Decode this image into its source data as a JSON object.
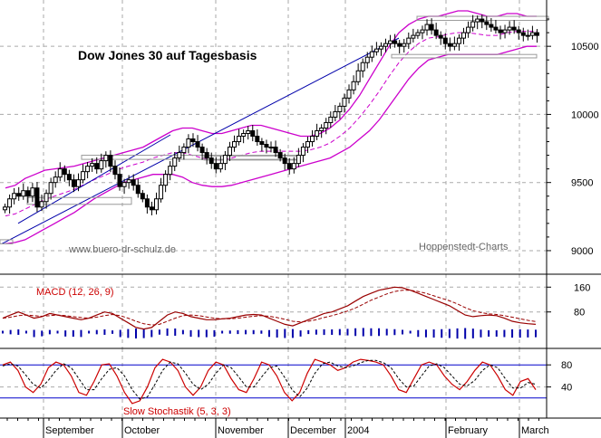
{
  "chart_data": [
    {
      "type": "candlestick",
      "title": "Dow Jones 30 auf Tagesbasis",
      "watermark_left": "www.buero-dr-schulz.de",
      "watermark_right": "Hoppenstedt-Charts",
      "y_ticks": [
        9000,
        9500,
        10000,
        10500
      ],
      "y_tick_labels": [
        "9000",
        "9500",
        "10000",
        "10500"
      ],
      "ylim": [
        8920,
        10800
      ],
      "grid": true,
      "x_labels": [
        "September",
        "October",
        "November",
        "December",
        "2004",
        "February",
        "March"
      ],
      "close": [
        9320,
        9380,
        9420,
        9400,
        9440,
        9400,
        9460,
        9320,
        9360,
        9420,
        9500,
        9540,
        9600,
        9560,
        9520,
        9470,
        9520,
        9580,
        9620,
        9640,
        9600,
        9660,
        9700,
        9620,
        9560,
        9470,
        9500,
        9520,
        9480,
        9420,
        9380,
        9320,
        9300,
        9380,
        9480,
        9560,
        9620,
        9680,
        9720,
        9760,
        9820,
        9800,
        9760,
        9720,
        9680,
        9640,
        9600,
        9640,
        9700,
        9760,
        9800,
        9840,
        9860,
        9880,
        9840,
        9800,
        9780,
        9760,
        9760,
        9720,
        9680,
        9640,
        9600,
        9640,
        9700,
        9760,
        9800,
        9840,
        9880,
        9900,
        9940,
        9980,
        10020,
        10060,
        10120,
        10180,
        10240,
        10320,
        10380,
        10420,
        10460,
        10480,
        10500,
        10520,
        10540,
        10520,
        10500,
        10520,
        10560,
        10580,
        10600,
        10620,
        10660,
        10620,
        10580,
        10560,
        10520,
        10500,
        10520,
        10560,
        10600,
        10640,
        10680,
        10700,
        10680,
        10660,
        10640,
        10620,
        10600,
        10620,
        10640,
        10620,
        10600,
        10580,
        10580,
        10600,
        10580
      ],
      "levels": [
        {
          "type": "upper_band",
          "values": [
            9460,
            9480,
            9530,
            9560,
            9590,
            9600,
            9610,
            9620,
            9640,
            9660,
            9680,
            9700,
            9720,
            9740,
            9760,
            9800,
            9840,
            9880,
            9900,
            9900,
            9880,
            9860,
            9860,
            9880,
            9900,
            9920,
            9920,
            9900,
            9880,
            9860,
            9840,
            9840,
            9860,
            9900,
            9960,
            10040,
            10140,
            10260,
            10380,
            10500,
            10600,
            10660,
            10700,
            10720,
            10720,
            10740,
            10760,
            10760,
            10740,
            10720,
            10720,
            10740,
            10740,
            10720,
            10720
          ]
        },
        {
          "type": "lower_band",
          "values": [
            9050,
            9060,
            9080,
            9120,
            9160,
            9200,
            9240,
            9280,
            9330,
            9380,
            9420,
            9460,
            9500,
            9520,
            9540,
            9560,
            9560,
            9560,
            9540,
            9500,
            9480,
            9470,
            9470,
            9480,
            9500,
            9520,
            9540,
            9560,
            9580,
            9600,
            9620,
            9640,
            9660,
            9680,
            9720,
            9760,
            9820,
            9880,
            9960,
            10060,
            10160,
            10260,
            10340,
            10400,
            10420,
            10440,
            10440,
            10440,
            10440,
            10440,
            10440,
            10460,
            10480,
            10500,
            10500
          ]
        }
      ]
    },
    {
      "type": "macd",
      "label": "MACD (12, 26, 9)",
      "y_ticks": [
        80,
        160
      ],
      "y_tick_labels": [
        "80",
        "160"
      ],
      "ylim": [
        -20,
        190
      ],
      "macd": [
        60,
        70,
        80,
        70,
        60,
        65,
        75,
        70,
        65,
        60,
        55,
        60,
        70,
        80,
        75,
        60,
        45,
        30,
        25,
        30,
        50,
        70,
        80,
        75,
        65,
        60,
        55,
        55,
        58,
        60,
        65,
        70,
        72,
        70,
        60,
        50,
        40,
        35,
        45,
        55,
        65,
        75,
        80,
        90,
        100,
        115,
        130,
        140,
        150,
        155,
        160,
        158,
        150,
        140,
        130,
        120,
        110,
        100,
        85,
        70,
        65,
        68,
        70,
        68,
        60,
        50,
        45,
        42,
        40
      ],
      "signal": [
        60,
        63,
        68,
        70,
        68,
        66,
        68,
        70,
        68,
        65,
        62,
        60,
        63,
        68,
        72,
        68,
        60,
        50,
        42,
        38,
        40,
        50,
        60,
        68,
        70,
        68,
        64,
        60,
        58,
        58,
        60,
        63,
        66,
        68,
        66,
        62,
        56,
        50,
        48,
        50,
        55,
        62,
        68,
        75,
        83,
        93,
        105,
        118,
        128,
        138,
        146,
        150,
        150,
        146,
        140,
        132,
        124,
        116,
        106,
        94,
        84,
        78,
        74,
        72,
        68,
        63,
        58,
        53,
        49
      ],
      "histogram": [
        0,
        7,
        12,
        0,
        -8,
        -1,
        7,
        0,
        -3,
        -5,
        -7,
        0,
        7,
        12,
        3,
        -8,
        -15,
        -20,
        -17,
        -8,
        10,
        20,
        20,
        7,
        -5,
        -8,
        -9,
        -5,
        0,
        2,
        5,
        7,
        6,
        2,
        -6,
        -12,
        -16,
        -15,
        -3,
        5,
        10,
        13,
        12,
        15,
        17,
        22,
        25,
        22,
        22,
        17,
        14,
        8,
        0,
        -6,
        -10,
        -12,
        -14,
        -16,
        -21,
        -24,
        -19,
        -10,
        -4,
        -4,
        -8,
        -13,
        -13,
        -11,
        -9
      ]
    },
    {
      "type": "stochastic",
      "label": "Slow Stochastik (5, 3, 3)",
      "y_ticks": [
        40,
        80
      ],
      "y_tick_labels": [
        "40",
        "80"
      ],
      "ylim": [
        0,
        100
      ],
      "reference_lines": [
        20,
        80
      ],
      "k": [
        80,
        85,
        70,
        40,
        30,
        45,
        75,
        85,
        80,
        60,
        30,
        25,
        50,
        80,
        82,
        60,
        30,
        10,
        15,
        40,
        75,
        90,
        85,
        70,
        40,
        25,
        40,
        70,
        85,
        80,
        55,
        35,
        30,
        55,
        85,
        80,
        60,
        30,
        15,
        30,
        65,
        90,
        85,
        80,
        70,
        75,
        85,
        90,
        88,
        85,
        80,
        60,
        35,
        30,
        55,
        80,
        85,
        80,
        60,
        45,
        35,
        50,
        70,
        85,
        80,
        60,
        35,
        25,
        50,
        55,
        35
      ],
      "d": [
        78,
        82,
        78,
        62,
        45,
        38,
        52,
        70,
        82,
        75,
        55,
        35,
        35,
        55,
        72,
        75,
        60,
        35,
        18,
        22,
        45,
        70,
        85,
        82,
        65,
        45,
        35,
        45,
        65,
        80,
        75,
        58,
        40,
        40,
        58,
        75,
        78,
        58,
        35,
        22,
        38,
        65,
        82,
        85,
        78,
        75,
        78,
        84,
        88,
        88,
        84,
        75,
        55,
        40,
        42,
        60,
        78,
        82,
        75,
        60,
        45,
        42,
        52,
        70,
        80,
        75,
        55,
        38,
        38,
        48,
        45
      ]
    }
  ]
}
